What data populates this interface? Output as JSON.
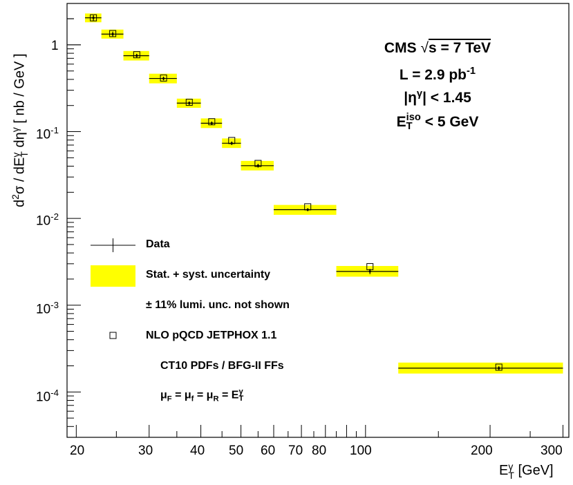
{
  "chart_data": {
    "type": "scatter",
    "xscale": "log",
    "yscale": "log",
    "xlim": [
      19,
      310
    ],
    "ylim": [
      3e-05,
      3
    ],
    "grid": false,
    "legend_position": "bottom-left",
    "xlabel": "E_T^γ [GeV]",
    "ylabel": "d²σ / dE_T^γ dη^γ [ nb / GeV ]",
    "x_ticks": [
      "20",
      "30",
      "40",
      "50",
      "60",
      "70",
      "80",
      "100",
      "200",
      "300"
    ],
    "y_ticks": [
      "1",
      "10^-1",
      "10^-2",
      "10^-3",
      "10^-4"
    ],
    "data": {
      "name": "Data",
      "points": [
        {
          "x": 22,
          "xlo": 21,
          "xhi": 23,
          "y": 2.05,
          "ylo": 1.9,
          "yhi": 2.2
        },
        {
          "x": 24.5,
          "xlo": 23,
          "xhi": 26,
          "y": 1.33,
          "ylo": 1.25,
          "yhi": 1.42
        },
        {
          "x": 28,
          "xlo": 26,
          "xhi": 30,
          "y": 0.75,
          "ylo": 0.71,
          "yhi": 0.79
        },
        {
          "x": 32.5,
          "xlo": 30,
          "xhi": 35,
          "y": 0.41,
          "ylo": 0.39,
          "yhi": 0.43
        },
        {
          "x": 37.5,
          "xlo": 35,
          "xhi": 40,
          "y": 0.213,
          "ylo": 0.203,
          "yhi": 0.223
        },
        {
          "x": 42.5,
          "xlo": 40,
          "xhi": 45,
          "y": 0.125,
          "ylo": 0.119,
          "yhi": 0.131
        },
        {
          "x": 47.5,
          "xlo": 45,
          "xhi": 50,
          "y": 0.0735,
          "ylo": 0.07,
          "yhi": 0.077
        },
        {
          "x": 55,
          "xlo": 50,
          "xhi": 60,
          "y": 0.0405,
          "ylo": 0.0385,
          "yhi": 0.0425
        },
        {
          "x": 72.5,
          "xlo": 60,
          "xhi": 85,
          "y": 0.0126,
          "ylo": 0.0121,
          "yhi": 0.0131
        },
        {
          "x": 102.5,
          "xlo": 85,
          "xhi": 120,
          "y": 0.00245,
          "ylo": 0.00228,
          "yhi": 0.00262
        },
        {
          "x": 210,
          "xlo": 120,
          "xhi": 300,
          "y": 0.000188,
          "ylo": 0.000178,
          "yhi": 0.000198
        }
      ]
    },
    "uncertainty_band": {
      "name": "Stat. + syst. uncertainty",
      "color": "#ffff00",
      "bins": [
        {
          "xlo": 21,
          "xhi": 23,
          "ylo": 1.82,
          "yhi": 2.3
        },
        {
          "xlo": 23,
          "xhi": 26,
          "ylo": 1.18,
          "yhi": 1.5
        },
        {
          "xlo": 26,
          "xhi": 30,
          "ylo": 0.66,
          "yhi": 0.85
        },
        {
          "xlo": 30,
          "xhi": 35,
          "ylo": 0.36,
          "yhi": 0.465
        },
        {
          "xlo": 35,
          "xhi": 40,
          "ylo": 0.188,
          "yhi": 0.24
        },
        {
          "xlo": 40,
          "xhi": 45,
          "ylo": 0.11,
          "yhi": 0.142
        },
        {
          "xlo": 45,
          "xhi": 50,
          "ylo": 0.0648,
          "yhi": 0.0835
        },
        {
          "xlo": 50,
          "xhi": 60,
          "ylo": 0.0357,
          "yhi": 0.046
        },
        {
          "xlo": 60,
          "xhi": 85,
          "ylo": 0.011,
          "yhi": 0.0143
        },
        {
          "xlo": 85,
          "xhi": 120,
          "ylo": 0.00213,
          "yhi": 0.00283
        },
        {
          "xlo": 120,
          "xhi": 300,
          "ylo": 0.000163,
          "yhi": 0.000218
        }
      ]
    },
    "theory": {
      "name": "NLO pQCD JETPHOX 1.1",
      "points": [
        {
          "x": 22,
          "y": 2.05
        },
        {
          "x": 24.5,
          "y": 1.35
        },
        {
          "x": 28,
          "y": 0.77
        },
        {
          "x": 32.5,
          "y": 0.415
        },
        {
          "x": 37.5,
          "y": 0.218
        },
        {
          "x": 42.5,
          "y": 0.13
        },
        {
          "x": 47.5,
          "y": 0.079
        },
        {
          "x": 55,
          "y": 0.043
        },
        {
          "x": 72.5,
          "y": 0.0136
        },
        {
          "x": 102.5,
          "y": 0.00278
        },
        {
          "x": 210,
          "y": 0.000193
        }
      ]
    }
  },
  "info": {
    "line1": "CMS",
    "line1_b": "s = 7 TeV",
    "line2": "L = 2.9 pb",
    "line2_sup": "-1",
    "line3_a": "|η",
    "line3_sup": "γ",
    "line3_b": "| < 1.45",
    "line4_a": "E",
    "line4_sup": "iso",
    "line4_sub": "T",
    "line4_b": "< 5 GeV"
  },
  "legend": {
    "data": "Data",
    "band": "Stat. + syst. uncertainty",
    "lumi": "± 11% lumi. unc. not shown",
    "theory": "NLO pQCD JETPHOX 1.1",
    "pdf": "CT10 PDFs / BFG-II FFs",
    "mu_a": "μ",
    "mu_F": "F",
    "mu_eq1": " = μ",
    "mu_f": "f",
    "mu_eq2": " = μ",
    "mu_R": "R",
    "mu_eq3": " = E",
    "mu_sup": "γ",
    "mu_sub": "T"
  },
  "axis": {
    "x_main": "E",
    "x_sup": "γ",
    "x_sub": "T",
    "x_unit": " [GeV]",
    "y_a": "d",
    "y_sup2": "2",
    "y_b": "σ / dE",
    "y_sup_g": "γ",
    "y_sub_t": "T",
    "y_c": " dη",
    "y_sup_g2": "γ",
    "y_d": " [ nb / GeV ]"
  },
  "y_tick_labels": {
    "one": "1",
    "base": "10",
    "e1": "-1",
    "e2": "-2",
    "e3": "-3",
    "e4": "-4"
  }
}
